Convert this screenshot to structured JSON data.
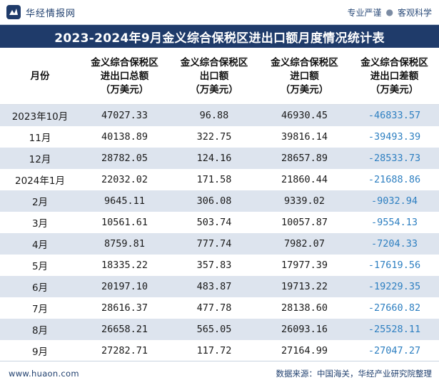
{
  "header": {
    "brand_name": "华经情报网",
    "slogan_left": "专业严谨",
    "slogan_sep": "●",
    "slogan_right": "客观科学"
  },
  "title": "2023-2024年9月金义综合保税区进出口额月度情况统计表",
  "table": {
    "columns": [
      "月份",
      "金义综合保税区\n进出口总额\n（万美元）",
      "金义综合保税区\n出口额\n（万美元）",
      "金义综合保税区\n进口额\n（万美元）",
      "金义综合保税区\n进出口差额\n（万美元）"
    ],
    "rows": [
      {
        "month": "2023年10月",
        "total": "47027.33",
        "export": "96.88",
        "import": "46930.45",
        "balance": "-46833.57"
      },
      {
        "month": "11月",
        "total": "40138.89",
        "export": "322.75",
        "import": "39816.14",
        "balance": "-39493.39"
      },
      {
        "month": "12月",
        "total": "28782.05",
        "export": "124.16",
        "import": "28657.89",
        "balance": "-28533.73"
      },
      {
        "month": "2024年1月",
        "total": "22032.02",
        "export": "171.58",
        "import": "21860.44",
        "balance": "-21688.86"
      },
      {
        "month": "2月",
        "total": "9645.11",
        "export": "306.08",
        "import": "9339.02",
        "balance": "-9032.94"
      },
      {
        "month": "3月",
        "total": "10561.61",
        "export": "503.74",
        "import": "10057.87",
        "balance": "-9554.13"
      },
      {
        "month": "4月",
        "total": "8759.81",
        "export": "777.74",
        "import": "7982.07",
        "balance": "-7204.33"
      },
      {
        "month": "5月",
        "total": "18335.22",
        "export": "357.83",
        "import": "17977.39",
        "balance": "-17619.56"
      },
      {
        "month": "6月",
        "total": "20197.10",
        "export": "483.87",
        "import": "19713.22",
        "balance": "-19229.35"
      },
      {
        "month": "7月",
        "total": "28616.37",
        "export": "477.78",
        "import": "28138.60",
        "balance": "-27660.82"
      },
      {
        "month": "8月",
        "total": "26658.21",
        "export": "565.05",
        "import": "26093.16",
        "balance": "-25528.11"
      },
      {
        "month": "9月",
        "total": "27282.71",
        "export": "117.72",
        "import": "27164.99",
        "balance": "-27047.27"
      }
    ]
  },
  "footer": {
    "url": "www.huaon.com",
    "source": "数据来源：中国海关，华经产业研究院整理"
  },
  "colors": {
    "title_bg": "#1f3b6a",
    "stripe": "#dde4ee",
    "negative": "#2d7fc1"
  },
  "icons": {
    "logo": "huajing-logo-icon"
  }
}
